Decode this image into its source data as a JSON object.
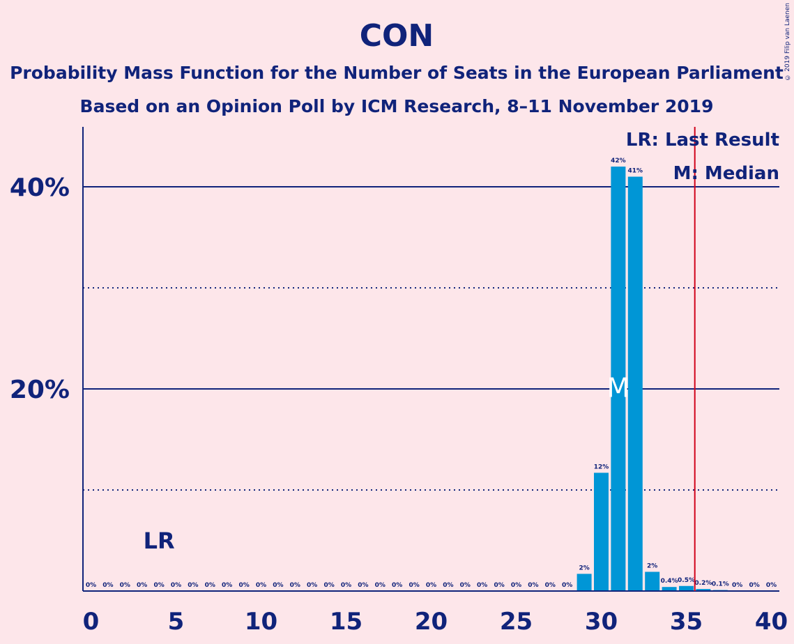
{
  "header": {
    "title": "CON",
    "subtitle": "Probability Mass Function for the Number of Seats in the European Parliament",
    "poll_line": "Based on an Opinion Poll by ICM Research, 8–11 November 2019"
  },
  "copyright": "© 2019 Filip van Laenen",
  "legend": {
    "last_result": "LR: Last Result",
    "median": "M: Median"
  },
  "markers": {
    "last_result_label": "LR",
    "last_result_seats": 4,
    "median_label": "M",
    "median_seats": 31,
    "threshold_seats": 35.5
  },
  "colors": {
    "background": "#fde6ea",
    "bar": "#0096d6",
    "text": "#10237a",
    "threshold_line": "#d0021b"
  },
  "chart_data": {
    "type": "bar",
    "xlim": [
      0,
      40
    ],
    "ylim": [
      0,
      46
    ],
    "x_ticks": [
      "0",
      "5",
      "10",
      "15",
      "20",
      "25",
      "30",
      "35",
      "40"
    ],
    "y_ticks_major": [
      "20%",
      "40%"
    ],
    "y_ticks_minor": [
      10,
      30
    ],
    "x": [
      0,
      1,
      2,
      3,
      4,
      5,
      6,
      7,
      8,
      9,
      10,
      11,
      12,
      13,
      14,
      15,
      16,
      17,
      18,
      19,
      20,
      21,
      22,
      23,
      24,
      25,
      26,
      27,
      28,
      29,
      30,
      31,
      32,
      33,
      34,
      35,
      36,
      37,
      38,
      39,
      40
    ],
    "values": [
      0,
      0,
      0,
      0,
      0,
      0,
      0,
      0,
      0,
      0,
      0,
      0,
      0,
      0,
      0,
      0,
      0,
      0,
      0,
      0,
      0,
      0,
      0,
      0,
      0,
      0,
      0,
      0,
      0,
      1.7,
      11.7,
      42,
      41,
      1.9,
      0.4,
      0.5,
      0.2,
      0.1,
      0,
      0,
      0
    ],
    "data_labels": [
      "0%",
      "0%",
      "0%",
      "0%",
      "0%",
      "0%",
      "0%",
      "0%",
      "0%",
      "0%",
      "0%",
      "0%",
      "0%",
      "0%",
      "0%",
      "0%",
      "0%",
      "0%",
      "0%",
      "0%",
      "0%",
      "0%",
      "0%",
      "0%",
      "0%",
      "0%",
      "0%",
      "0%",
      "0%",
      "2%",
      "12%",
      "42%",
      "41%",
      "2%",
      "0.4%",
      "0.5%",
      "0.2%",
      "0.1%",
      "0%",
      "0%",
      "0%"
    ]
  }
}
